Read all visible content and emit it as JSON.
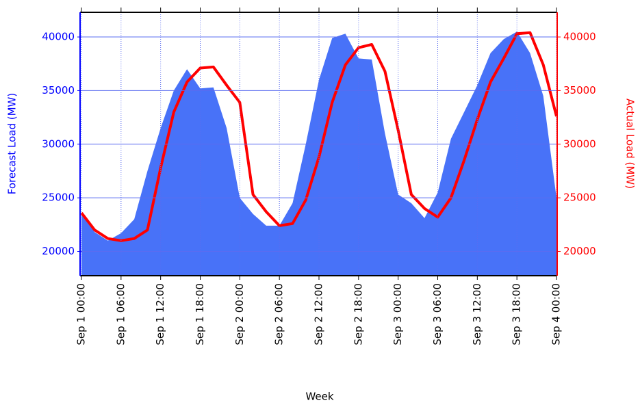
{
  "chart_data": {
    "type": "area-line",
    "x_label": "Week",
    "y_label": "Forecast Load (MW)",
    "y2_label": "Actual Load (MW)",
    "x": [
      0,
      2,
      4,
      6,
      8,
      10,
      12,
      14,
      16,
      18,
      20,
      22,
      24,
      26,
      28,
      30,
      32,
      34,
      36,
      38,
      40,
      42,
      44,
      46,
      48,
      50,
      52,
      54,
      56,
      58,
      60,
      62,
      64,
      66,
      68,
      70,
      72
    ],
    "series": [
      {
        "name": "Forecast Load (MW)",
        "color": "#4872f8",
        "kind": "area",
        "values": [
          23600,
          21800,
          21000,
          21700,
          23000,
          27500,
          31500,
          35000,
          37000,
          35200,
          35300,
          31500,
          25000,
          23500,
          22400,
          22400,
          24500,
          30000,
          36000,
          39900,
          40300,
          38000,
          37900,
          31000,
          25300,
          24500,
          23100,
          25500,
          30500,
          33000,
          35500,
          38500,
          39800,
          40500,
          38500,
          34500,
          25000
        ]
      },
      {
        "name": "Actual Load (MW)",
        "color": "#ff0000",
        "kind": "line",
        "axis": "y2",
        "values": [
          23600,
          22000,
          21200,
          21000,
          21200,
          22000,
          27800,
          33000,
          35800,
          37100,
          37200,
          35500,
          33900,
          25300,
          23700,
          22400,
          22600,
          24800,
          28800,
          33900,
          37400,
          39000,
          39300,
          36800,
          31300,
          25300,
          24000,
          23200,
          25000,
          28500,
          32300,
          35800,
          38000,
          40300,
          40400,
          37400,
          32600
        ]
      }
    ],
    "xlim": [
      0,
      72
    ],
    "xticks": [
      {
        "value": 0,
        "label": "Sep 1 00:00"
      },
      {
        "value": 6,
        "label": "Sep 1 06:00"
      },
      {
        "value": 12,
        "label": "Sep 1 12:00"
      },
      {
        "value": 18,
        "label": "Sep 1 18:00"
      },
      {
        "value": 24,
        "label": "Sep 2 00:00"
      },
      {
        "value": 30,
        "label": "Sep 2 06:00"
      },
      {
        "value": 36,
        "label": "Sep 2 12:00"
      },
      {
        "value": 42,
        "label": "Sep 2 18:00"
      },
      {
        "value": 48,
        "label": "Sep 3 00:00"
      },
      {
        "value": 54,
        "label": "Sep 3 06:00"
      },
      {
        "value": 60,
        "label": "Sep 3 12:00"
      },
      {
        "value": 66,
        "label": "Sep 3 18:00"
      },
      {
        "value": 72,
        "label": "Sep 4 00:00"
      }
    ],
    "ylim": [
      17800,
      42300
    ],
    "yticks": [
      20000,
      25000,
      30000,
      35000,
      40000
    ],
    "y2lim": [
      17800,
      42300
    ],
    "y2ticks": [
      20000,
      25000,
      30000,
      35000,
      40000
    ],
    "grid": true,
    "y_color": "#0000ff",
    "y2_color": "#ff0000"
  }
}
